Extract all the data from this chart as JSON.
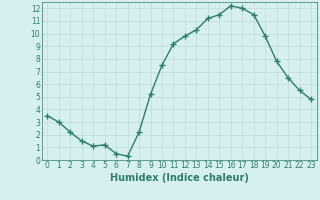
{
  "x": [
    0,
    1,
    2,
    3,
    4,
    5,
    6,
    7,
    8,
    9,
    10,
    11,
    12,
    13,
    14,
    15,
    16,
    17,
    18,
    19,
    20,
    21,
    22,
    23
  ],
  "y": [
    3.5,
    3.0,
    2.2,
    1.5,
    1.1,
    1.2,
    0.5,
    0.3,
    2.2,
    5.2,
    7.5,
    9.2,
    9.8,
    10.3,
    11.2,
    11.5,
    12.2,
    12.0,
    11.5,
    9.8,
    7.8,
    6.5,
    5.5,
    4.8
  ],
  "line_color": "#2e7d6e",
  "marker": "+",
  "marker_size": 4,
  "bg_color": "#d6f0ef",
  "grid_color": "#c0dbd8",
  "xlabel": "Humidex (Indice chaleur)",
  "xlim": [
    -0.5,
    23.5
  ],
  "ylim": [
    0,
    12.5
  ],
  "xticks": [
    0,
    1,
    2,
    3,
    4,
    5,
    6,
    7,
    8,
    9,
    10,
    11,
    12,
    13,
    14,
    15,
    16,
    17,
    18,
    19,
    20,
    21,
    22,
    23
  ],
  "yticks": [
    0,
    1,
    2,
    3,
    4,
    5,
    6,
    7,
    8,
    9,
    10,
    11,
    12
  ],
  "tick_fontsize": 5.5,
  "xlabel_fontsize": 7,
  "line_width": 1.0,
  "marker_color": "#2e7d6e"
}
